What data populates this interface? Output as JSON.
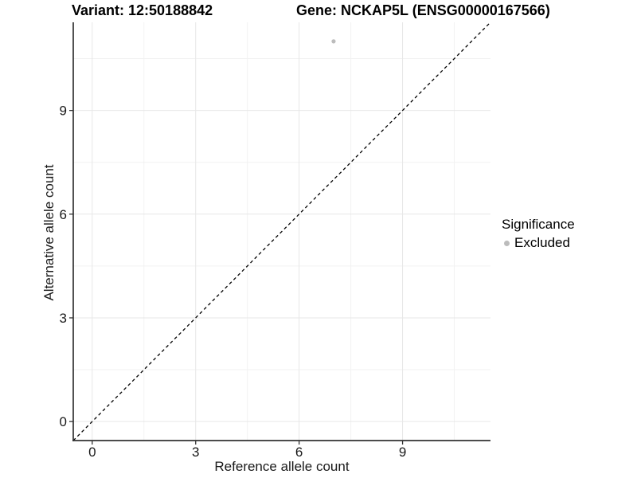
{
  "chart_data": {
    "type": "scatter",
    "title_left": "Variant: 12:50188842",
    "title_right": "Gene: NCKAP5L (ENSG00000167566)",
    "xlabel": "Reference allele count",
    "ylabel": "Alternative allele count",
    "xlim": [
      -0.55,
      11.55
    ],
    "ylim": [
      -0.55,
      11.55
    ],
    "x_ticks": [
      0,
      3,
      6,
      9
    ],
    "y_ticks": [
      0,
      3,
      6,
      9
    ],
    "x_minor_gridlines": [
      1.5,
      4.5,
      7.5,
      10.5
    ],
    "y_minor_gridlines": [
      1.5,
      4.5,
      7.5,
      10.5
    ],
    "grid": true,
    "identity_line": {
      "slope": 1,
      "intercept": 0,
      "style": "dashed",
      "color": "#000000"
    },
    "series": [
      {
        "name": "Excluded",
        "color": "#bcbcbc",
        "points": [
          {
            "x": 7,
            "y": 11
          }
        ]
      }
    ],
    "legend": {
      "title": "Significance",
      "position": "right",
      "items": [
        {
          "label": "Excluded",
          "color": "#bcbcbc"
        }
      ]
    }
  },
  "colors": {
    "background": "#ffffff",
    "grid_major": "#e7e7e7",
    "grid_minor": "#f2f2f2",
    "axis_line": "#333333",
    "tick_label": "#1a1a1a",
    "point": "#bcbcbc"
  }
}
